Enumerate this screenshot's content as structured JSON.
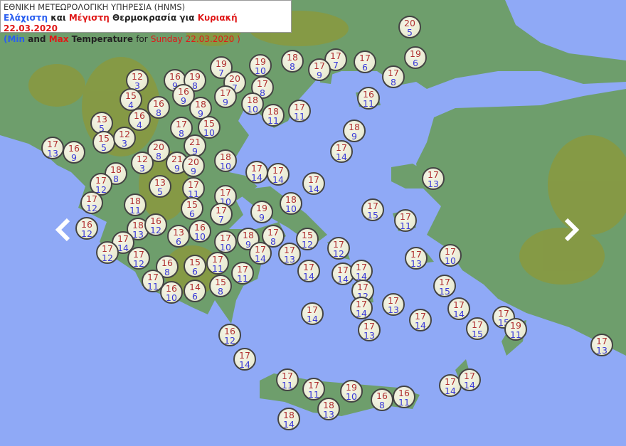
{
  "header": {
    "line1": "ΕΘΝΙΚΗ ΜΕΤΕΩΡΟΛΟΓΙΚΗ ΥΠΗΡΕΣΙΑ (HNMS)",
    "gr_min": "Ελάχιστη",
    "gr_and": "και",
    "gr_max": "Μέγιστη",
    "gr_temp": "Θερμοκρασία για",
    "gr_date": "Κυριακή 22.03.2020",
    "en_open": "(Min",
    "en_and": "and",
    "en_max": "Max",
    "en_temp": "Temperature",
    "en_for": "for",
    "en_date": "Sunday 22.03.2020 )"
  },
  "colors": {
    "sea": "#8fa9f6",
    "land": "#6e9e6c",
    "mountain": "#8b983c",
    "max_text": "#b03030",
    "min_text": "#3a3ad8"
  },
  "nav": {
    "prev_icon": "chevron-left-icon",
    "next_icon": "chevron-right-icon"
  },
  "stations": [
    {
      "max": "20",
      "min": "5"
    },
    {
      "max": "19",
      "min": "6"
    },
    {
      "max": "17",
      "min": "8"
    },
    {
      "max": "17",
      "min": "6"
    },
    {
      "max": "17",
      "min": "7"
    },
    {
      "max": "17",
      "min": "9"
    },
    {
      "max": "18",
      "min": "8"
    },
    {
      "max": "19",
      "min": "10"
    },
    {
      "max": "19",
      "min": "7"
    },
    {
      "max": "20",
      "min": "7"
    },
    {
      "max": "17",
      "min": "8"
    },
    {
      "max": "17",
      "min": "9"
    },
    {
      "max": "18",
      "min": "10"
    },
    {
      "max": "18",
      "min": "11"
    },
    {
      "max": "17",
      "min": "11"
    },
    {
      "max": "16",
      "min": "11"
    },
    {
      "max": "18",
      "min": "9"
    },
    {
      "max": "17",
      "min": "14"
    },
    {
      "max": "12",
      "min": "3"
    },
    {
      "max": "16",
      "min": "9"
    },
    {
      "max": "19",
      "min": "8"
    },
    {
      "max": "16",
      "min": "9"
    },
    {
      "max": "15",
      "min": "4"
    },
    {
      "max": "16",
      "min": "8"
    },
    {
      "max": "18",
      "min": "9"
    },
    {
      "max": "16",
      "min": "4"
    },
    {
      "max": "13",
      "min": "5"
    },
    {
      "max": "17",
      "min": "8"
    },
    {
      "max": "15",
      "min": "10"
    },
    {
      "max": "15",
      "min": "5"
    },
    {
      "max": "12",
      "min": "3"
    },
    {
      "max": "17",
      "min": "13"
    },
    {
      "max": "16",
      "min": "9"
    },
    {
      "max": "20",
      "min": "8"
    },
    {
      "max": "21",
      "min": "9"
    },
    {
      "max": "12",
      "min": "3"
    },
    {
      "max": "21",
      "min": "9"
    },
    {
      "max": "20",
      "min": "9"
    },
    {
      "max": "18",
      "min": "10"
    },
    {
      "max": "18",
      "min": "8"
    },
    {
      "max": "17",
      "min": "14"
    },
    {
      "max": "17",
      "min": "14"
    },
    {
      "max": "17",
      "min": "14"
    },
    {
      "max": "17",
      "min": "12"
    },
    {
      "max": "13",
      "min": "5"
    },
    {
      "max": "17",
      "min": "11"
    },
    {
      "max": "17",
      "min": "10"
    },
    {
      "max": "18",
      "min": "10"
    },
    {
      "max": "17",
      "min": "12"
    },
    {
      "max": "18",
      "min": "11"
    },
    {
      "max": "15",
      "min": "6"
    },
    {
      "max": "17",
      "min": "7"
    },
    {
      "max": "19",
      "min": "9"
    },
    {
      "max": "17",
      "min": "15"
    },
    {
      "max": "17",
      "min": "11"
    },
    {
      "max": "17",
      "min": "13"
    },
    {
      "max": "16",
      "min": "12"
    },
    {
      "max": "18",
      "min": "13"
    },
    {
      "max": "16",
      "min": "12"
    },
    {
      "max": "16",
      "min": "10"
    },
    {
      "max": "13",
      "min": "6"
    },
    {
      "max": "17",
      "min": "10"
    },
    {
      "max": "18",
      "min": "9"
    },
    {
      "max": "17",
      "min": "8"
    },
    {
      "max": "15",
      "min": "12"
    },
    {
      "max": "17",
      "min": "12"
    },
    {
      "max": "17",
      "min": "14"
    },
    {
      "max": "17",
      "min": "12"
    },
    {
      "max": "17",
      "min": "14"
    },
    {
      "max": "17",
      "min": "13"
    },
    {
      "max": "17",
      "min": "12"
    },
    {
      "max": "17",
      "min": "13"
    },
    {
      "max": "17",
      "min": "10"
    },
    {
      "max": "16",
      "min": "8"
    },
    {
      "max": "15",
      "min": "6"
    },
    {
      "max": "17",
      "min": "11"
    },
    {
      "max": "17",
      "min": "11"
    },
    {
      "max": "17",
      "min": "14"
    },
    {
      "max": "17",
      "min": "14"
    },
    {
      "max": "17",
      "min": "14"
    },
    {
      "max": "17",
      "min": "11"
    },
    {
      "max": "16",
      "min": "10"
    },
    {
      "max": "14",
      "min": "6"
    },
    {
      "max": "15",
      "min": "8"
    },
    {
      "max": "17",
      "min": "12"
    },
    {
      "max": "17",
      "min": "15"
    },
    {
      "max": "17",
      "min": "13"
    },
    {
      "max": "17",
      "min": "14"
    },
    {
      "max": "17",
      "min": "14"
    },
    {
      "max": "17",
      "min": "14"
    },
    {
      "max": "17",
      "min": "14"
    },
    {
      "max": "17",
      "min": "13"
    },
    {
      "max": "17",
      "min": "15"
    },
    {
      "max": "17",
      "min": "15"
    },
    {
      "max": "19",
      "min": "11"
    },
    {
      "max": "17",
      "min": "13"
    },
    {
      "max": "16",
      "min": "12"
    },
    {
      "max": "17",
      "min": "14"
    },
    {
      "max": "17",
      "min": "11"
    },
    {
      "max": "17",
      "min": "11"
    },
    {
      "max": "19",
      "min": "10"
    },
    {
      "max": "16",
      "min": "8"
    },
    {
      "max": "16",
      "min": "11"
    },
    {
      "max": "18",
      "min": "13"
    },
    {
      "max": "18",
      "min": "14"
    },
    {
      "max": "17",
      "min": "14"
    },
    {
      "max": "17",
      "min": "14"
    }
  ]
}
